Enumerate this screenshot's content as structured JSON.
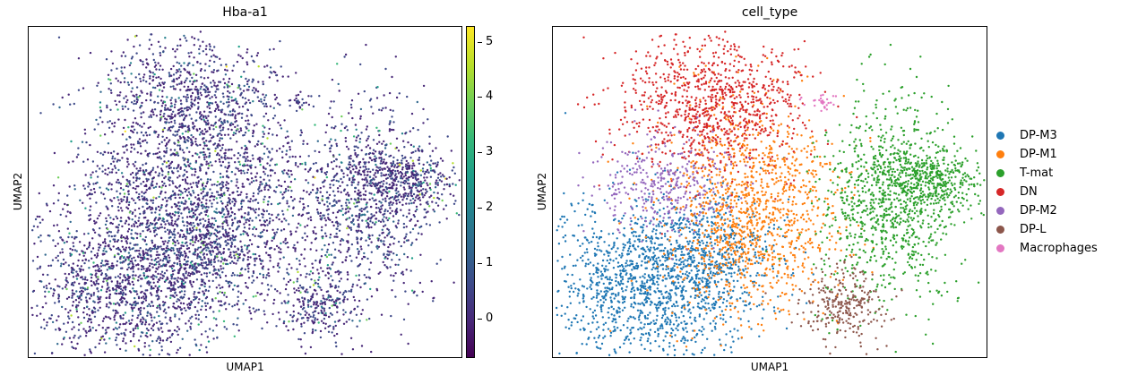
{
  "chart_data": [
    {
      "type": "scatter",
      "title": "Hba-a1",
      "xlabel": "UMAP1",
      "ylabel": "UMAP2",
      "color_by": "Hba-a1",
      "colormap": "viridis",
      "colorbar": {
        "min": -0.7,
        "max": 5.3,
        "ticks": [
          "0",
          "1",
          "2",
          "3",
          "4",
          "5"
        ]
      },
      "grid": false
    },
    {
      "type": "scatter",
      "title": "cell_type",
      "xlabel": "UMAP1",
      "ylabel": "UMAP2",
      "color_by": "cell_type",
      "legend_position": "right",
      "grid": false,
      "categories": [
        {
          "name": "DP-M3",
          "color": "#1f77b4"
        },
        {
          "name": "DP-M1",
          "color": "#ff7f0e"
        },
        {
          "name": "T-mat",
          "color": "#2ca02c"
        },
        {
          "name": "DN",
          "color": "#d62728"
        },
        {
          "name": "DP-M2",
          "color": "#9467bd"
        },
        {
          "name": "DP-L",
          "color": "#8c564b"
        },
        {
          "name": "Macrophages",
          "color": "#e377c2"
        }
      ]
    }
  ]
}
